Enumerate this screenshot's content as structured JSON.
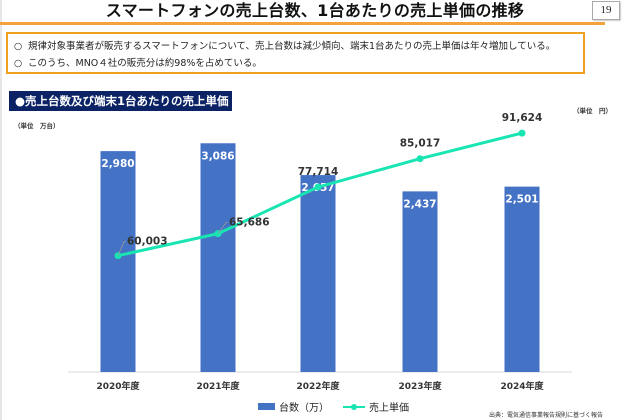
{
  "page": {
    "title": "スマートフォンの売上台数、1台あたりの売上単価の推移",
    "page_number": "19"
  },
  "summary": {
    "items": [
      {
        "marker": "○",
        "text": "規律対象事業者が販売するスマートフォンについて、売上台数は減少傾向、端末1台あたりの売上単価は年々増加している。"
      },
      {
        "marker": "○",
        "text": "このうち、MNO４社の販売分は約98%を占めている。"
      }
    ]
  },
  "chart_header": "●売上台数及び端末1台あたりの売上単価",
  "units": {
    "left": "（単位　万台）",
    "right": "（単位　円）"
  },
  "source": "出典：電気通信事業報告規則に基づく報告",
  "colors": {
    "bar": "#4472c4",
    "line": "#19e5b3",
    "header_bg": "#0b2264",
    "accent_orange": "#f0a020"
  },
  "chart_data": {
    "type": "bar+line",
    "title": "売上台数及び端末1台あたりの売上単価",
    "categories": [
      "2020年度",
      "2021年度",
      "2022年度",
      "2023年度",
      "2024年度"
    ],
    "series": [
      {
        "name": "台数（万）",
        "type": "bar",
        "axis": "left",
        "unit": "万台",
        "values": [
          2980,
          3086,
          2657,
          2437,
          2501
        ],
        "labels": [
          "2,980",
          "3,086",
          "2,657",
          "2,437",
          "2,501"
        ]
      },
      {
        "name": "売上単価",
        "type": "line",
        "axis": "right",
        "unit": "円",
        "values": [
          60003,
          65686,
          77714,
          85017,
          91624
        ],
        "labels": [
          "60,003",
          "65,686",
          "77,714",
          "85,017",
          "91,624"
        ]
      }
    ],
    "left_axis": {
      "label": "（単位　万台）",
      "range": [
        0,
        3400
      ],
      "visible_ticks": false
    },
    "right_axis": {
      "label": "（単位　円）",
      "range": [
        30000,
        95000
      ],
      "visible_ticks": false
    },
    "grid": false,
    "legend": "bottom-center"
  }
}
